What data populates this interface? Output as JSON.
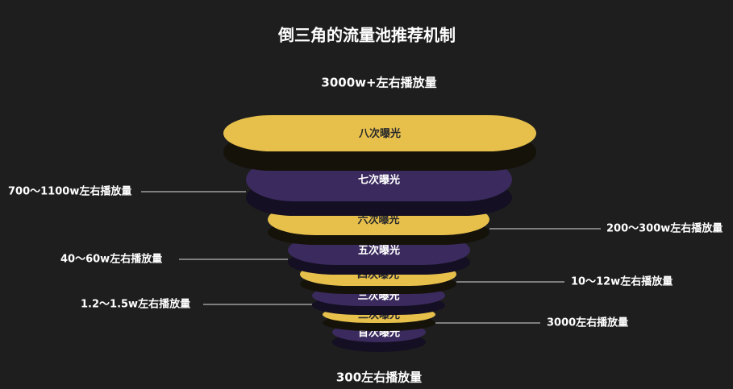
{
  "title": "倒三角的流量池推荐机制",
  "top_label": "3000w+左右播放量",
  "bottom_label": "300左右播放量",
  "layers": [
    {
      "label": "八次曝光"
    },
    {
      "label": "七次曝光"
    },
    {
      "label": "六次曝光"
    },
    {
      "label": "五次曝光"
    },
    {
      "label": "四次曝光"
    },
    {
      "label": "三次曝光"
    },
    {
      "label": "二次曝光"
    },
    {
      "label": "首次曝光"
    }
  ],
  "annotations": [
    {
      "text": "700～1100w左右播放量"
    },
    {
      "text": "200～300w左右播放量"
    },
    {
      "text": "40～60w左右播放量"
    },
    {
      "text": "10～12w左右播放量"
    },
    {
      "text": "1.2～1.5w左右播放量"
    },
    {
      "text": "3000左右播放量"
    }
  ]
}
